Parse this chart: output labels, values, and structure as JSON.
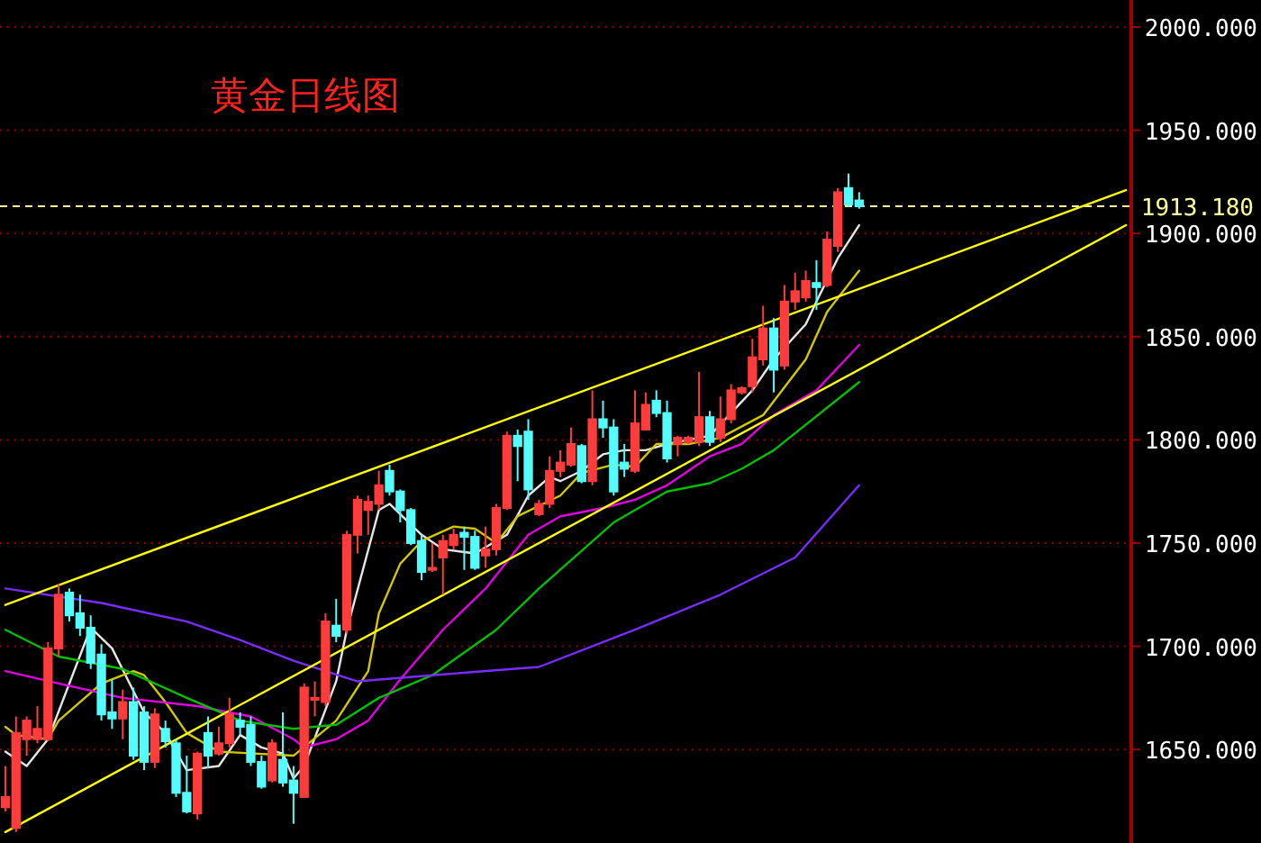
{
  "chart_data": {
    "type": "candlestick",
    "title": "黄金日线图",
    "categories": [
      null,
      null,
      null,
      null,
      null,
      null,
      null,
      null,
      null,
      null,
      null,
      null,
      null,
      null,
      null,
      null,
      null,
      null,
      null,
      null,
      null,
      null,
      null,
      null,
      null,
      null,
      null,
      null,
      null,
      null,
      null,
      null,
      null,
      null,
      null,
      null,
      null,
      null,
      null,
      null,
      null,
      null,
      null,
      null,
      null,
      null,
      null,
      null,
      null,
      null,
      null,
      null,
      null,
      null,
      null,
      null,
      null,
      null,
      null,
      null,
      null,
      null,
      null,
      null,
      null,
      null,
      null,
      null,
      null,
      null,
      null,
      null,
      null,
      null,
      null,
      null,
      null,
      null,
      null,
      null,
      null,
      null,
      null,
      null,
      null,
      null,
      null,
      null,
      null,
      null,
      null,
      null,
      null,
      null,
      null,
      null,
      null,
      null,
      null,
      null,
      null,
      null,
      null,
      null,
      null,
      null
    ],
    "ohlc": [
      [
        1622,
        1642,
        1620,
        1627
      ],
      [
        1612,
        1666,
        1610,
        1658
      ],
      [
        1655,
        1666,
        1647,
        1664
      ],
      [
        1655,
        1671,
        1653,
        1660
      ],
      [
        1655,
        1702,
        1654,
        1699
      ],
      [
        1699,
        1730,
        1695,
        1725
      ],
      [
        1726,
        1728,
        1712,
        1715
      ],
      [
        1716,
        1725,
        1705,
        1709
      ],
      [
        1709,
        1715,
        1689,
        1692
      ],
      [
        1696,
        1701,
        1664,
        1667
      ],
      [
        1668,
        1684,
        1660,
        1665
      ],
      [
        1665,
        1679,
        1655,
        1673
      ],
      [
        1673,
        1680,
        1645,
        1647
      ],
      [
        1668,
        1671,
        1640,
        1644
      ],
      [
        1644,
        1670,
        1641,
        1667
      ],
      [
        1660,
        1664,
        1651,
        1654
      ],
      [
        1653,
        1655,
        1627,
        1629
      ],
      [
        1629,
        1647,
        1619,
        1620
      ],
      [
        1619,
        1649,
        1616,
        1648
      ],
      [
        1658,
        1666,
        1641,
        1647
      ],
      [
        1648,
        1661,
        1647,
        1653
      ],
      [
        1653,
        1675,
        1651,
        1667
      ],
      [
        1664,
        1668,
        1657,
        1661
      ],
      [
        1662,
        1666,
        1642,
        1644
      ],
      [
        1644,
        1647,
        1631,
        1632
      ],
      [
        1635,
        1655,
        1634,
        1653
      ],
      [
        1645,
        1668,
        1632,
        1634
      ],
      [
        1635,
        1642,
        1614,
        1629
      ],
      [
        1627,
        1682,
        1627,
        1680
      ],
      [
        1675,
        1683,
        1666,
        1675
      ],
      [
        1673,
        1716,
        1671,
        1712
      ],
      [
        1710,
        1723,
        1702,
        1705
      ],
      [
        1708,
        1756,
        1706,
        1754
      ],
      [
        1754,
        1773,
        1745,
        1771
      ],
      [
        1766,
        1773,
        1754,
        1770
      ],
      [
        1769,
        1785,
        1766,
        1778
      ],
      [
        1785,
        1788,
        1773,
        1775
      ],
      [
        1775,
        1776,
        1760,
        1766
      ],
      [
        1766,
        1767,
        1749,
        1750
      ],
      [
        1751,
        1754,
        1732,
        1736
      ],
      [
        1737,
        1750,
        1736,
        1738
      ],
      [
        1743,
        1754,
        1725,
        1751
      ],
      [
        1749,
        1757,
        1747,
        1754
      ],
      [
        1755,
        1758,
        1737,
        1753
      ],
      [
        1753,
        1756,
        1737,
        1738
      ],
      [
        1744,
        1758,
        1738,
        1747
      ],
      [
        1747,
        1769,
        1744,
        1767
      ],
      [
        1767,
        1804,
        1766,
        1802
      ],
      [
        1802,
        1805,
        1780,
        1797
      ],
      [
        1804,
        1810,
        1771,
        1776
      ],
      [
        1764,
        1771,
        1763,
        1769
      ],
      [
        1769,
        1792,
        1767,
        1785
      ],
      [
        1785,
        1795,
        1782,
        1789
      ],
      [
        1788,
        1806,
        1787,
        1798
      ],
      [
        1797,
        1798,
        1779,
        1780
      ],
      [
        1780,
        1824,
        1778,
        1810
      ],
      [
        1810,
        1819,
        1801,
        1806
      ],
      [
        1806,
        1810,
        1773,
        1775
      ],
      [
        1789,
        1798,
        1782,
        1786
      ],
      [
        1785,
        1824,
        1784,
        1808
      ],
      [
        1805,
        1823,
        1805,
        1817
      ],
      [
        1819,
        1824,
        1811,
        1813
      ],
      [
        1813,
        1819,
        1789,
        1791
      ],
      [
        1798,
        1802,
        1792,
        1801
      ],
      [
        1799,
        1802,
        1798,
        1801
      ],
      [
        1799,
        1833,
        1797,
        1811
      ],
      [
        1811,
        1814,
        1797,
        1799
      ],
      [
        1801,
        1821,
        1799,
        1810
      ],
      [
        1810,
        1827,
        1808,
        1824
      ],
      [
        1823,
        1826,
        1822,
        1825
      ],
      [
        1826,
        1849,
        1823,
        1840
      ],
      [
        1839,
        1865,
        1836,
        1854
      ],
      [
        1854,
        1859,
        1823,
        1834
      ],
      [
        1836,
        1875,
        1834,
        1867
      ],
      [
        1867,
        1881,
        1863,
        1872
      ],
      [
        1869,
        1882,
        1867,
        1877
      ],
      [
        1876,
        1887,
        1863,
        1874
      ],
      [
        1875,
        1901,
        1874,
        1897
      ],
      [
        1894,
        1922,
        1891,
        1920
      ],
      [
        1922,
        1929,
        1913,
        1914
      ],
      [
        1916,
        1920,
        1912,
        1913.18
      ],
      null,
      null,
      null,
      null,
      null,
      null,
      null,
      null,
      null,
      null,
      null,
      null,
      null,
      null,
      null,
      null,
      null,
      null,
      null,
      null,
      null,
      null,
      null,
      null,
      null
    ],
    "series": [
      {
        "type": "line",
        "color": "#e6e6e6",
        "values": [
          1649,
          null,
          1642,
          null,
          1655,
          null,
          null,
          null,
          1709,
          null,
          1699,
          null,
          null,
          1668,
          null,
          1658,
          null,
          1640,
          null,
          null,
          1642,
          null,
          1657,
          null,
          1651,
          null,
          1648,
          1636,
          1642,
          null,
          null,
          1683,
          1708,
          null,
          null,
          1766,
          1769,
          null,
          null,
          1754,
          null,
          1747,
          null,
          null,
          1745,
          null,
          null,
          1754,
          null,
          1773,
          null,
          1782,
          1780,
          null,
          1785,
          null,
          1793,
          null,
          1795,
          null,
          1795,
          null,
          1798,
          null,
          null,
          1801,
          1802,
          null,
          null,
          null,
          1824,
          null,
          1839,
          null,
          null,
          1856,
          1867,
          null,
          1888,
          null,
          1904,
          null,
          null,
          null,
          null,
          null,
          null,
          null,
          null,
          null,
          null,
          null,
          null,
          null,
          null,
          null,
          null,
          null,
          null,
          null,
          null,
          null,
          null,
          null,
          null,
          null
        ]
      },
      {
        "type": "line",
        "color": "#d2c800",
        "values": [
          1661,
          1657,
          null,
          null,
          1655,
          1664,
          null,
          null,
          null,
          1682,
          null,
          null,
          1688,
          1686,
          null,
          1673,
          null,
          1658,
          null,
          null,
          1649,
          null,
          null,
          null,
          null,
          null,
          null,
          1647,
          null,
          null,
          null,
          1664,
          null,
          null,
          1688,
          1716,
          null,
          1740,
          null,
          1751,
          null,
          null,
          1758,
          null,
          1757,
          null,
          1750,
          null,
          1763,
          null,
          null,
          null,
          1773,
          null,
          1784,
          null,
          null,
          1788,
          null,
          1787,
          null,
          1798,
          null,
          null,
          1798,
          null,
          null,
          1801,
          null,
          null,
          null,
          1812,
          null,
          null,
          null,
          1839,
          null,
          1862,
          null,
          null,
          1882,
          null,
          null,
          null,
          null,
          null,
          null,
          null,
          null,
          null,
          null,
          null,
          null,
          null,
          null,
          null,
          null,
          null,
          null,
          null,
          null,
          null,
          null,
          null,
          null,
          null
        ]
      },
      {
        "type": "line",
        "color": "#e000e0",
        "values": [
          1688,
          null,
          null,
          null,
          null,
          1682,
          null,
          null,
          null,
          null,
          null,
          1675,
          null,
          null,
          null,
          null,
          null,
          null,
          1671,
          null,
          null,
          null,
          1667,
          1666,
          null,
          null,
          null,
          1655,
          1651,
          null,
          null,
          1655,
          null,
          null,
          1664,
          null,
          null,
          1684,
          null,
          null,
          null,
          1708,
          null,
          null,
          null,
          1728,
          null,
          null,
          null,
          1754,
          null,
          null,
          1763,
          null,
          null,
          null,
          1767,
          null,
          null,
          1771,
          null,
          null,
          1778,
          null,
          null,
          null,
          1792,
          null,
          null,
          1798,
          null,
          null,
          1812,
          null,
          null,
          null,
          1824,
          null,
          null,
          null,
          1846,
          null,
          null,
          null,
          null,
          null,
          null,
          null,
          null,
          null,
          null,
          null,
          null,
          null,
          null,
          null,
          null,
          null,
          null,
          null,
          null,
          null,
          null,
          null,
          null,
          null
        ]
      },
      {
        "type": "line",
        "color": "#00c000",
        "values": [
          1708,
          null,
          null,
          null,
          null,
          1695,
          null,
          null,
          null,
          null,
          null,
          1689,
          null,
          null,
          null,
          null,
          null,
          1675,
          null,
          null,
          null,
          null,
          1664,
          null,
          null,
          null,
          null,
          1660,
          null,
          null,
          null,
          1662,
          null,
          null,
          null,
          1675,
          null,
          null,
          null,
          null,
          1686,
          null,
          null,
          null,
          null,
          null,
          1708,
          null,
          null,
          null,
          1728,
          null,
          null,
          null,
          null,
          null,
          null,
          1760,
          null,
          null,
          null,
          null,
          1775,
          null,
          null,
          null,
          1779,
          null,
          null,
          1786,
          null,
          null,
          1795,
          null,
          null,
          null,
          null,
          null,
          null,
          null,
          1828,
          null,
          null,
          null,
          null,
          null,
          null,
          null,
          null,
          null,
          null,
          null,
          null,
          null,
          null,
          null,
          null,
          null,
          null,
          null,
          null,
          null,
          null,
          null,
          null,
          null
        ]
      },
      {
        "type": "line",
        "color": "#7a2cff",
        "values": [
          1728,
          null,
          null,
          null,
          null,
          null,
          null,
          null,
          null,
          1721,
          null,
          null,
          null,
          null,
          null,
          null,
          null,
          1712,
          null,
          null,
          null,
          null,
          1703,
          null,
          null,
          null,
          null,
          1693,
          null,
          null,
          null,
          null,
          null,
          1683,
          null,
          null,
          null,
          null,
          null,
          null,
          1686,
          null,
          null,
          null,
          null,
          null,
          null,
          null,
          null,
          null,
          1690,
          null,
          null,
          null,
          null,
          null,
          null,
          null,
          null,
          1708,
          null,
          null,
          null,
          null,
          null,
          null,
          null,
          1725,
          null,
          null,
          null,
          null,
          null,
          null,
          1743,
          null,
          null,
          null,
          null,
          null,
          1778,
          null,
          null,
          null,
          null,
          null,
          null,
          null,
          null,
          null,
          null,
          null,
          null,
          null,
          null,
          null,
          null,
          null,
          null,
          null,
          null,
          null,
          null,
          null,
          null,
          null
        ]
      },
      {
        "type": "line",
        "color": "#ffff00",
        "values": [
          1720,
          null,
          null,
          null,
          null,
          null,
          null,
          null,
          null,
          null,
          null,
          null,
          null,
          null,
          null,
          null,
          null,
          null,
          null,
          null,
          null,
          null,
          null,
          null,
          null,
          null,
          null,
          null,
          null,
          null,
          null,
          null,
          null,
          null,
          null,
          null,
          null,
          null,
          null,
          null,
          null,
          null,
          null,
          null,
          null,
          null,
          null,
          null,
          null,
          null,
          null,
          null,
          null,
          null,
          null,
          null,
          null,
          null,
          null,
          null,
          null,
          null,
          null,
          null,
          null,
          null,
          null,
          null,
          null,
          null,
          null,
          null,
          null,
          null,
          null,
          null,
          null,
          null,
          null,
          null,
          null,
          null,
          null,
          null,
          null,
          null,
          null,
          null,
          null,
          null,
          null,
          null,
          null,
          null,
          null,
          null,
          null,
          null,
          null,
          null,
          null,
          null,
          null,
          null,
          null,
          1921
        ]
      },
      {
        "type": "line",
        "color": "#ffff00",
        "values": [
          1610,
          null,
          null,
          null,
          null,
          null,
          null,
          null,
          null,
          null,
          null,
          null,
          null,
          null,
          null,
          null,
          null,
          null,
          null,
          null,
          null,
          null,
          null,
          null,
          null,
          null,
          null,
          null,
          null,
          null,
          null,
          null,
          null,
          null,
          null,
          null,
          null,
          null,
          null,
          null,
          null,
          null,
          null,
          null,
          null,
          null,
          null,
          null,
          null,
          null,
          null,
          null,
          null,
          null,
          null,
          null,
          null,
          null,
          null,
          null,
          null,
          null,
          null,
          null,
          null,
          null,
          null,
          null,
          null,
          null,
          null,
          null,
          null,
          null,
          null,
          null,
          null,
          null,
          null,
          null,
          null,
          null,
          null,
          null,
          null,
          null,
          null,
          null,
          null,
          null,
          null,
          null,
          null,
          null,
          null,
          null,
          null,
          null,
          null,
          null,
          null,
          null,
          null,
          null,
          null,
          1904
        ]
      }
    ],
    "ylim": [
      1604.7,
      2013.1
    ],
    "yticks": [
      {
        "value": 1650,
        "label": "1650.000"
      },
      {
        "value": 1700,
        "label": "1700.000"
      },
      {
        "value": 1750,
        "label": "1750.000"
      },
      {
        "value": 1800,
        "label": "1800.000"
      },
      {
        "value": 1850,
        "label": "1850.000"
      },
      {
        "value": 1900,
        "label": "1900.000"
      },
      {
        "value": 1950,
        "label": "1950.000"
      },
      {
        "value": 2000,
        "label": "2000.000"
      }
    ],
    "tick_labels": "y",
    "grid": "y",
    "ref_lines": [
      {
        "axis": "y",
        "value": 1913.18,
        "label": "1913.180",
        "color": "#ffff99",
        "line_style": "dashed"
      }
    ]
  }
}
